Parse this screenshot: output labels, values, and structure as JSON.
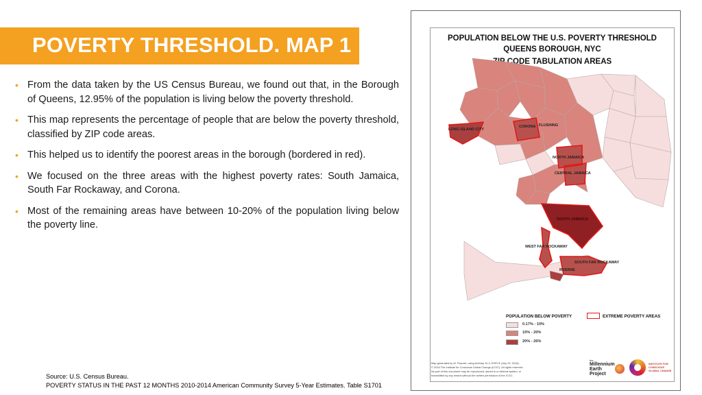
{
  "slide": {
    "title": "POVERTY THRESHOLD. MAP 1",
    "bullets": [
      "From the data taken by the US Census Bureau, we found out that, in the Borough of Queens, 12.95% of the population is living  below the poverty threshold.",
      "This map represents the percentage of people that are below the poverty threshold, classified by ZIP code areas.",
      "This helped us to identify the poorest areas in the borough (bordered in red).",
      "We focused on the three areas with the highest poverty rates: South Jamaica, South Far Rockaway, and Corona.",
      "Most of the remaining areas have between 10-20% of the population living below the poverty line."
    ],
    "bullet_symbol": "•",
    "source_line1": "Source: U.S. Census Bureau.",
    "source_line2": "POVERTY STATUS IN THE PAST 12 MONTHS 2010-2014 American Community Survey 5-Year Estimates. Table  S1701",
    "accent_color": "#f4a020"
  },
  "map": {
    "title_line1": "POPULATION BELOW THE U.S. POVERTY THRESHOLD",
    "title_line2": "QUEENS BOROUGH, NYC",
    "title_line3": "ZIP CODE TABULATION AREAS",
    "area_labels": {
      "long_island_city": "LONG ISLAND CITY",
      "corona": "CORONA",
      "flushing": "FLUSHING",
      "north_jamaica": "NORTH JAMAICA",
      "central_jamaica": "CENTRAL JAMAICA",
      "south_jamaica": "SOUTH JAMAICA",
      "west_far_rockaway": "WEST FAR ROCKAWAY",
      "south_far_rockaway": "SOUTH FAR ROCKAWAY",
      "arverne": "RVERNE"
    },
    "legend": {
      "title": "POPULATION BELOW POVERTY",
      "extreme_label": "EXTREME POVERTY AREAS",
      "classes": [
        {
          "label": "0.17% - 10%",
          "color": "#f7dede"
        },
        {
          "label": "10% - 20%",
          "color": "#d9847c"
        },
        {
          "label": "20% - 26%",
          "color": "#a9403f"
        }
      ],
      "extreme_border_color": "#e01818"
    },
    "credits": [
      "Map generated by M. Pacoret, using ArcMap 10.3, ESRI ® (July 20, 2016).",
      "© 2016 The Institute for Conscious Global Change (ICGC). All rights reserved.",
      "No part of this document may be reproduced, stored in a retrieval system, or",
      "transmitted by any means without the written permission of the ICGC."
    ],
    "logos": {
      "mep_prefix": "the",
      "mep_line1": "Millennium",
      "mep_line2": "Earth",
      "mep_line3": "Project",
      "icgc_line1": "INSTITUTE FOR",
      "icgc_line2": "CONSCIOUS",
      "icgc_line3": "GLOBAL CHANGE"
    }
  }
}
